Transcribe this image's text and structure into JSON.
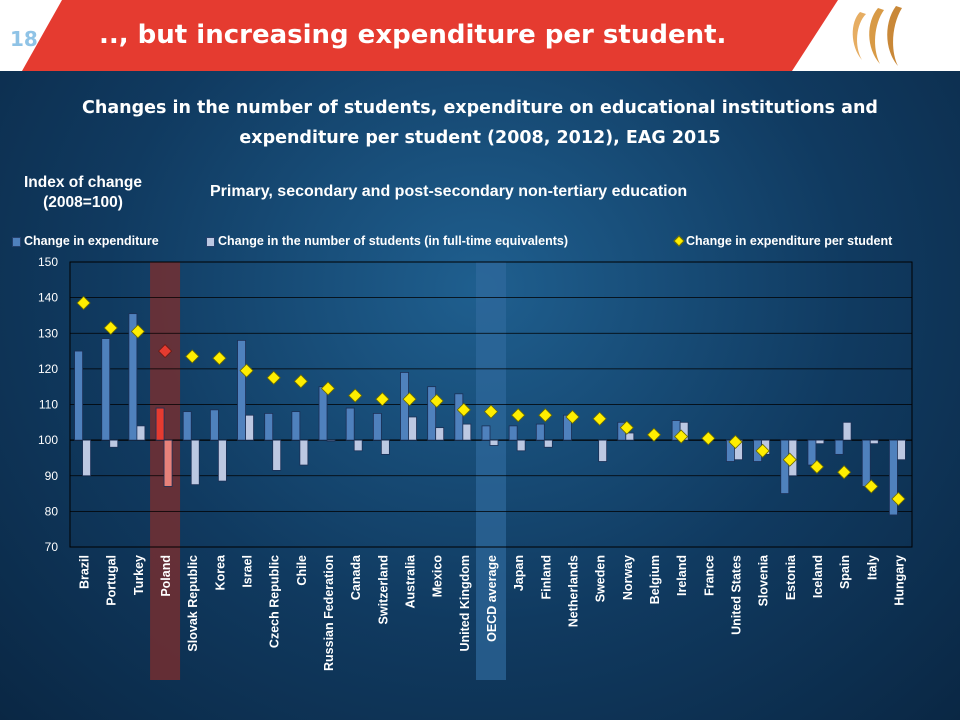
{
  "slide": {
    "page_number": "18",
    "headline": ".., but increasing expenditure per student.",
    "subtitle_line1": "Changes in the number of students, expenditure on educational institutions and",
    "subtitle_line2": "expenditure per student (2008, 2012), EAG 2015",
    "colors": {
      "header_red": "#e53b30",
      "background": "#103a60"
    }
  },
  "chart_data": {
    "type": "bar",
    "title": "Primary, secondary and post-secondary non-tertiary education",
    "ylabel_line1": "Index of change",
    "ylabel_line2": "(2008=100)",
    "ylim": [
      70,
      150
    ],
    "yticks": [
      70,
      80,
      90,
      100,
      110,
      120,
      130,
      140,
      150
    ],
    "baseline": 100,
    "grid": true,
    "legend_position": "top",
    "categories": [
      "Brazil",
      "Portugal",
      "Turkey",
      "Poland",
      "Slovak Republic",
      "Korea",
      "Israel",
      "Czech Republic",
      "Chile",
      "Russian Federation",
      "Canada",
      "Switzerland",
      "Australia",
      "Mexico",
      "United Kingdom",
      "OECD average",
      "Japan",
      "Finland",
      "Netherlands",
      "Sweden",
      "Norway",
      "Belgium",
      "Ireland",
      "France",
      "United States",
      "Slovenia",
      "Estonia",
      "Iceland",
      "Spain",
      "Italy",
      "Hungary"
    ],
    "highlighted": [
      "Poland",
      "OECD average"
    ],
    "series": [
      {
        "name": "Change in expenditure",
        "kind": "bar",
        "color": "#4f81bd",
        "values": [
          125,
          128.5,
          135.5,
          109,
          108,
          108.5,
          128,
          107.5,
          108,
          115,
          109,
          107.5,
          119,
          115,
          113,
          104,
          104,
          104.5,
          107,
          null,
          105,
          null,
          105.5,
          null,
          94,
          94,
          85,
          93,
          96,
          87,
          79
        ]
      },
      {
        "name": "Change in the number of students (in full-time equivalents)",
        "kind": "bar",
        "color": "#bcc8e2",
        "values": [
          90,
          98,
          104,
          87,
          87.5,
          88.5,
          107,
          91.5,
          93,
          100,
          97,
          96,
          106.5,
          103.5,
          104.5,
          98.5,
          97,
          98,
          null,
          94,
          102,
          null,
          105,
          null,
          94.5,
          96,
          90,
          99,
          105,
          99,
          94.5
        ]
      },
      {
        "name": "Change in expenditure per student",
        "kind": "marker",
        "color": "#ffee00",
        "values": [
          138.5,
          131.5,
          130.5,
          125,
          123.5,
          123,
          119.5,
          117.5,
          116.5,
          114.5,
          112.5,
          111.5,
          111.5,
          111,
          108.5,
          108,
          107,
          107,
          106.5,
          106,
          103.5,
          101.5,
          101,
          100.5,
          99.5,
          97,
          94.5,
          92.5,
          91,
          87,
          83.5
        ]
      }
    ]
  }
}
